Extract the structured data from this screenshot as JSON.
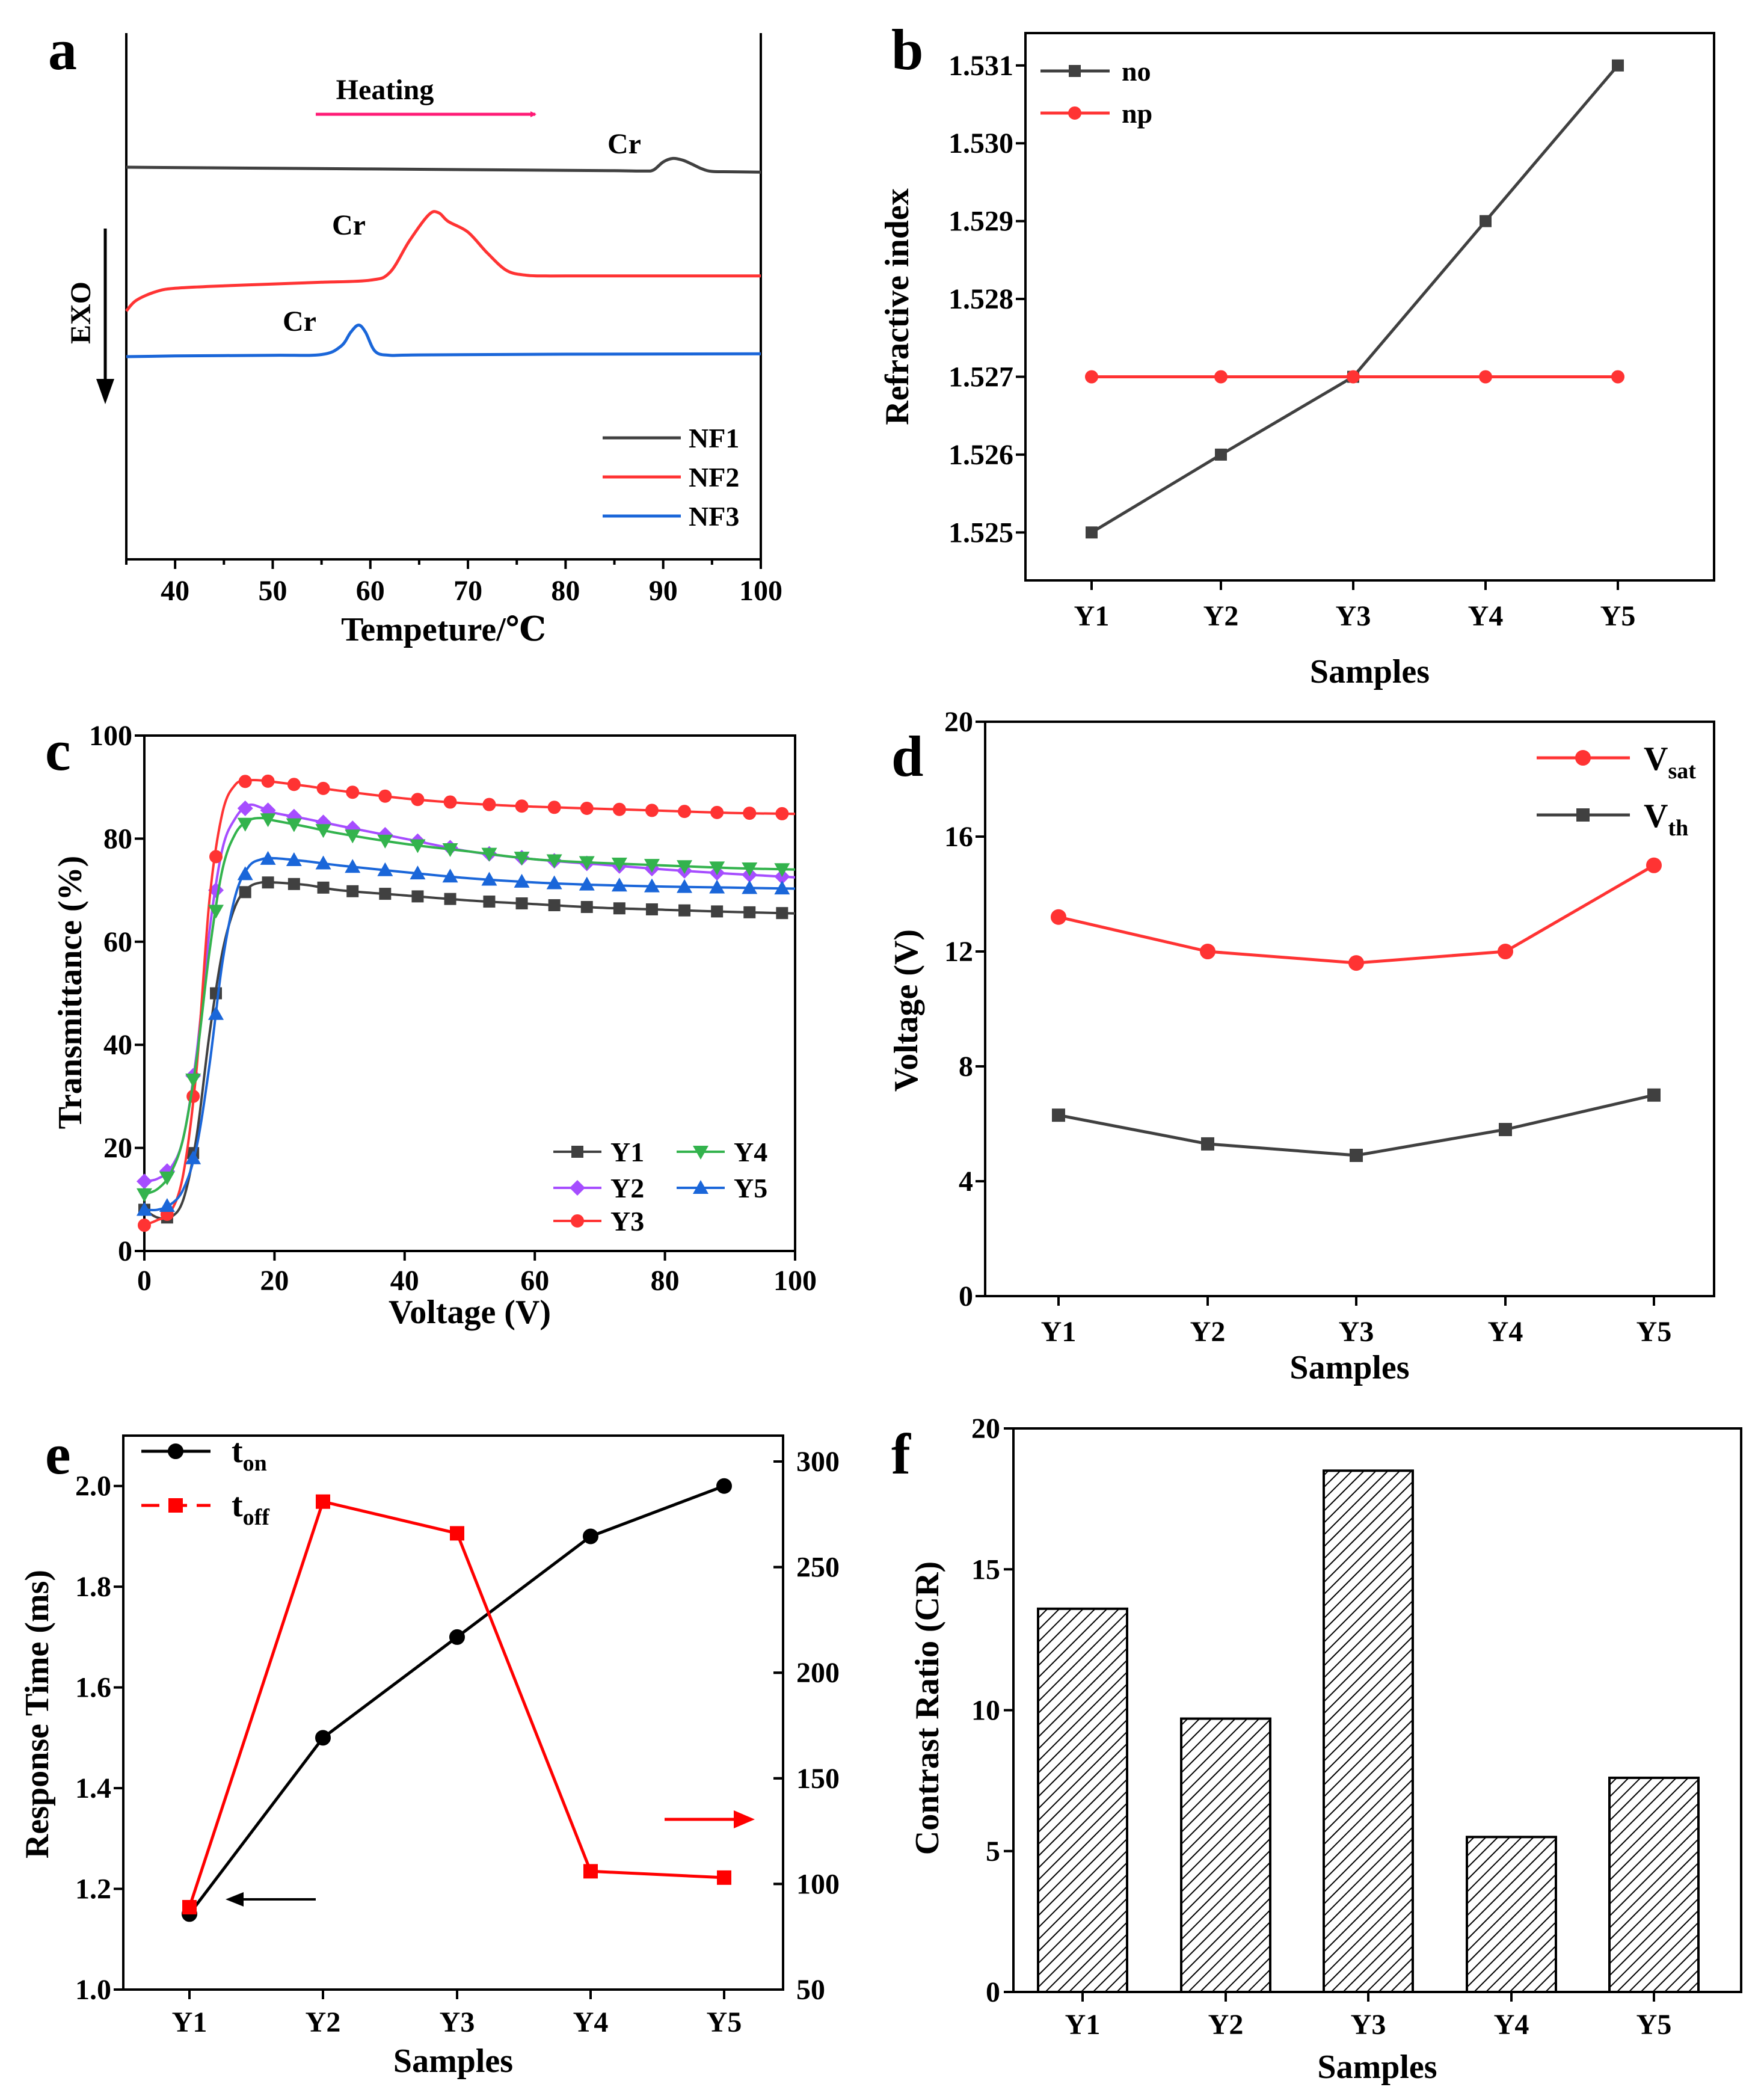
{
  "chart_data": [
    {
      "panel": "a",
      "type": "line",
      "xlabel": "Tempeture/℃",
      "ylabel": "EXO",
      "xlim": [
        35,
        100
      ],
      "xticks": [
        40,
        50,
        60,
        70,
        80,
        90,
        100
      ],
      "series": [
        {
          "name": "NF1",
          "color": "#404040",
          "x": [
            35,
            40,
            50,
            60,
            70,
            80,
            85,
            88,
            89,
            90,
            91,
            92,
            93,
            94,
            95,
            97,
            100
          ],
          "y": [
            0.0,
            -0.01,
            -0.03,
            -0.05,
            -0.07,
            -0.09,
            -0.1,
            -0.11,
            -0.08,
            0.15,
            0.25,
            0.2,
            0.08,
            -0.05,
            -0.12,
            -0.13,
            -0.14
          ]
        },
        {
          "name": "NF2",
          "color": "#ff3333",
          "x": [
            35,
            36,
            38,
            40,
            45,
            50,
            55,
            60,
            62,
            64,
            66,
            67,
            68,
            70,
            72,
            74,
            76,
            78,
            80,
            90,
            100
          ],
          "y": [
            -4.1,
            -3.8,
            -3.55,
            -3.45,
            -3.38,
            -3.33,
            -3.28,
            -3.22,
            -3.0,
            -2.1,
            -1.35,
            -1.3,
            -1.55,
            -1.85,
            -2.45,
            -2.95,
            -3.08,
            -3.1,
            -3.1,
            -3.1,
            -3.1
          ]
        },
        {
          "name": "NF3",
          "color": "#1a66d9",
          "x": [
            35,
            40,
            50,
            55,
            57,
            58,
            58.8,
            59.5,
            60.5,
            62,
            65,
            80,
            100
          ],
          "y": [
            -5.4,
            -5.38,
            -5.36,
            -5.34,
            -5.1,
            -4.7,
            -4.5,
            -4.7,
            -5.25,
            -5.36,
            -5.35,
            -5.33,
            -5.32
          ]
        }
      ],
      "annotations": [
        "Heating",
        "Cr",
        "Cr",
        "Cr"
      ]
    },
    {
      "panel": "b",
      "type": "line",
      "xlabel": "Samples",
      "ylabel": "Refractive index",
      "categories": [
        "Y1",
        "Y2",
        "Y3",
        "Y4",
        "Y5"
      ],
      "ylim": [
        1.5245,
        1.5313
      ],
      "yticks": [
        "1.525",
        "1.526",
        "1.527",
        "1.528",
        "1.529",
        "1.530",
        "1.531"
      ],
      "series": [
        {
          "name": "no",
          "color": "#404040",
          "marker": "square",
          "values": [
            1.525,
            1.526,
            1.527,
            1.529,
            1.531
          ]
        },
        {
          "name": "np",
          "color": "#ff3333",
          "marker": "circle",
          "values": [
            1.527,
            1.527,
            1.527,
            1.527,
            1.527
          ]
        }
      ]
    },
    {
      "panel": "c",
      "type": "line",
      "xlabel": "Voltage (V)",
      "ylabel": "Transmittance (%)",
      "xlim": [
        0,
        100
      ],
      "ylim": [
        0,
        100
      ],
      "xticks": [
        0,
        20,
        40,
        60,
        80,
        100
      ],
      "yticks": [
        0,
        20,
        40,
        60,
        80,
        100
      ],
      "series": [
        {
          "name": "Y1",
          "color": "#404040",
          "marker": "square",
          "x": [
            0,
            2,
            4,
            6,
            8,
            10,
            12,
            14,
            16,
            18,
            20,
            25,
            30,
            40,
            50,
            60,
            70,
            80,
            90,
            100
          ],
          "y": [
            8,
            6.5,
            6.5,
            10,
            22,
            42,
            58,
            67,
            70.5,
            71.5,
            71.5,
            71,
            70,
            69,
            68,
            67.3,
            66.6,
            66.2,
            65.8,
            65.5
          ]
        },
        {
          "name": "Y2",
          "color": "#a64dff",
          "marker": "diamond",
          "x": [
            0,
            2,
            4,
            6,
            8,
            10,
            12,
            14,
            16,
            18,
            20,
            25,
            30,
            40,
            50,
            60,
            70,
            80,
            90,
            100
          ],
          "y": [
            13.5,
            14,
            16,
            22,
            38,
            62,
            78,
            84,
            86.5,
            86,
            85,
            83.8,
            82.5,
            80,
            77.5,
            76,
            75,
            74,
            73.2,
            72.5
          ]
        },
        {
          "name": "Y3",
          "color": "#ff3333",
          "marker": "circle",
          "x": [
            0,
            2,
            4,
            6,
            8,
            10,
            12,
            14,
            16,
            18,
            20,
            25,
            30,
            40,
            50,
            60,
            70,
            80,
            90,
            100
          ],
          "y": [
            5,
            6,
            7.5,
            15,
            35,
            68,
            85,
            90.5,
            91.3,
            91.3,
            91,
            90.2,
            89.3,
            87.8,
            86.8,
            86.2,
            85.8,
            85.4,
            85,
            84.8
          ]
        },
        {
          "name": "Y4",
          "color": "#33b34d",
          "marker": "triangle-down",
          "x": [
            0,
            2,
            4,
            6,
            8,
            10,
            12,
            14,
            16,
            18,
            20,
            25,
            30,
            40,
            50,
            60,
            70,
            80,
            90,
            100
          ],
          "y": [
            11,
            12,
            15,
            22,
            37,
            58,
            74,
            81,
            83.5,
            84,
            83.5,
            82.3,
            81,
            79,
            77.5,
            76,
            75.3,
            74.8,
            74.3,
            74
          ]
        },
        {
          "name": "Y5",
          "color": "#1a66d9",
          "marker": "triangle-up",
          "x": [
            0,
            2,
            4,
            6,
            8,
            10,
            12,
            14,
            16,
            18,
            20,
            25,
            30,
            40,
            50,
            60,
            70,
            80,
            90,
            100
          ],
          "y": [
            8,
            8,
            9,
            12,
            20,
            36,
            56,
            69,
            74.5,
            76,
            76.2,
            75.6,
            74.8,
            73.5,
            72.3,
            71.5,
            71,
            70.7,
            70.5,
            70.3
          ]
        }
      ]
    },
    {
      "panel": "d",
      "type": "line",
      "xlabel": "Samples",
      "ylabel": "Voltage (V)",
      "categories": [
        "Y1",
        "Y2",
        "Y3",
        "Y4",
        "Y5"
      ],
      "ylim": [
        0,
        20
      ],
      "yticks": [
        0,
        4,
        8,
        12,
        16,
        20
      ],
      "series": [
        {
          "name": "V",
          "sub": "sat",
          "color": "#ff3333",
          "marker": "circle",
          "values": [
            13.2,
            12.0,
            11.6,
            12.0,
            15.0
          ]
        },
        {
          "name": "V",
          "sub": "th",
          "color": "#404040",
          "marker": "square",
          "values": [
            6.3,
            5.3,
            4.9,
            5.8,
            7.0
          ]
        }
      ]
    },
    {
      "panel": "e",
      "type": "line",
      "xlabel": "Samples",
      "ylabel": "Response Time (ms)",
      "categories": [
        "Y1",
        "Y2",
        "Y3",
        "Y4",
        "Y5"
      ],
      "ylim": [
        1.0,
        2.1
      ],
      "yticks": [
        "1.0",
        "1.2",
        "1.4",
        "1.6",
        "1.8",
        "2.0"
      ],
      "y2lim": [
        50,
        300
      ],
      "y2ticks": [
        50,
        100,
        150,
        200,
        250,
        300
      ],
      "series": [
        {
          "name": "t",
          "sub": "on",
          "axis": "left",
          "color": "#000000",
          "marker": "circle",
          "values": [
            1.15,
            1.5,
            1.7,
            1.9,
            2.0
          ]
        },
        {
          "name": "t",
          "sub": "off",
          "axis": "right",
          "color": "#ff0000",
          "marker": "square",
          "values": [
            89,
            281,
            266,
            106,
            103
          ]
        }
      ]
    },
    {
      "panel": "f",
      "type": "bar",
      "xlabel": "Samples",
      "ylabel": "Contrast Ratio (CR)",
      "categories": [
        "Y1",
        "Y2",
        "Y3",
        "Y4",
        "Y5"
      ],
      "values": [
        13.6,
        9.7,
        18.5,
        5.5,
        7.6
      ],
      "ylim": [
        0,
        20
      ],
      "yticks": [
        0,
        5,
        10,
        15,
        20
      ]
    }
  ]
}
